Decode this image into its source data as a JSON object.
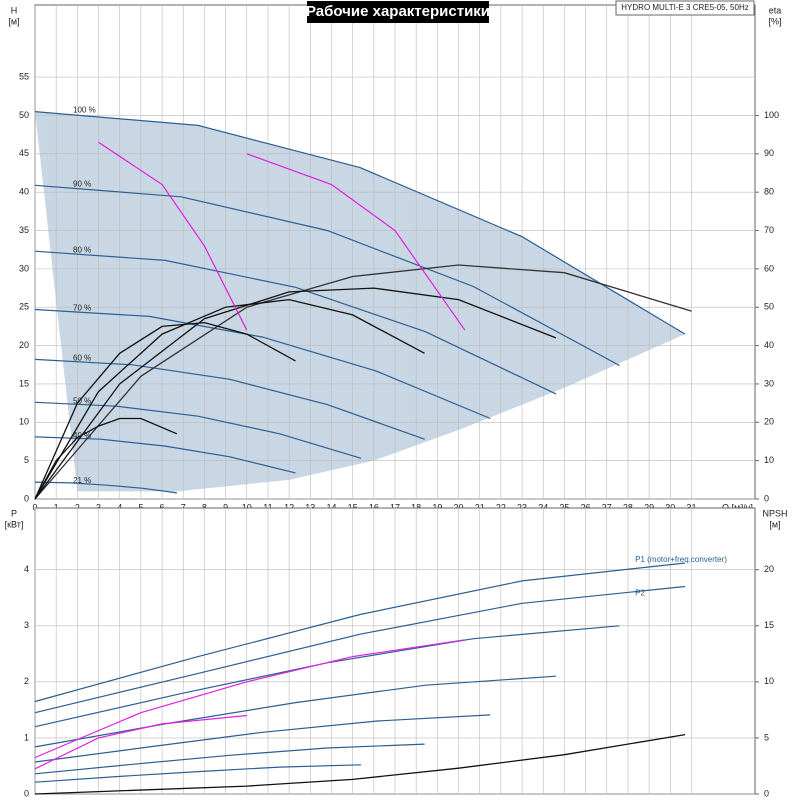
{
  "chart_data": [
    {
      "type": "line",
      "title": "Рабочие характеристики",
      "subtitle": "HYDRO MULTI-E 3 CRE5-05, 50Hz",
      "x_label": "Q [м³/ч]",
      "y_label": "H",
      "y_unit": "[м]",
      "y2_label": "eta",
      "y2_unit": "[%]",
      "xlim": [
        0,
        34
      ],
      "ylim": [
        0,
        64.4
      ],
      "y2lim": [
        0,
        128.8
      ],
      "xticks": [
        0,
        1,
        2,
        3,
        4,
        5,
        6,
        7,
        8,
        9,
        10,
        11,
        12,
        13,
        14,
        15,
        16,
        17,
        18,
        19,
        20,
        21,
        22,
        23,
        24,
        25,
        26,
        27,
        28,
        29,
        30,
        31
      ],
      "yticks": [
        0,
        5,
        10,
        15,
        20,
        25,
        30,
        35,
        40,
        45,
        50,
        55
      ],
      "y2ticks": [
        0,
        10,
        20,
        30,
        40,
        50,
        60,
        70,
        80,
        90,
        100
      ],
      "grid": true,
      "region": {
        "x": [
          2,
          6.7,
          12,
          16,
          20,
          25,
          30.7
        ],
        "lower": [
          1,
          1,
          2.5,
          5,
          9,
          14.5,
          21.5
        ]
      },
      "series": [
        {
          "name": "100 %",
          "color": "#2b5f93",
          "x": [
            0,
            7.7,
            15.35,
            23.0,
            30.7
          ],
          "values": [
            50.5,
            48.7,
            43.2,
            34.2,
            21.5
          ]
        },
        {
          "name": "90 %",
          "color": "#2b5f93",
          "x": [
            0,
            6.9,
            13.8,
            20.7,
            27.6
          ],
          "values": [
            40.9,
            39.4,
            35.0,
            27.7,
            17.4
          ]
        },
        {
          "name": "80 %",
          "color": "#2b5f93",
          "x": [
            0,
            6.15,
            12.3,
            18.45,
            24.6
          ],
          "values": [
            32.3,
            31.1,
            27.6,
            21.8,
            13.7
          ]
        },
        {
          "name": "70 %",
          "color": "#2b5f93",
          "x": [
            0,
            5.4,
            10.75,
            16.1,
            21.5
          ],
          "values": [
            24.7,
            23.8,
            21.1,
            16.7,
            10.5
          ]
        },
        {
          "name": "60 %",
          "color": "#2b5f93",
          "x": [
            0,
            4.6,
            9.2,
            13.8,
            18.4
          ],
          "values": [
            18.2,
            17.5,
            15.6,
            12.3,
            7.8
          ]
        },
        {
          "name": "50 %",
          "color": "#2b5f93",
          "x": [
            0,
            3.85,
            7.7,
            11.55,
            15.4
          ],
          "values": [
            12.6,
            12.1,
            10.8,
            8.5,
            5.3
          ]
        },
        {
          "name": "40 %",
          "color": "#2b5f93",
          "x": [
            0,
            3.1,
            6.15,
            9.2,
            12.3
          ],
          "values": [
            8.1,
            7.8,
            6.9,
            5.5,
            3.4
          ]
        },
        {
          "name": "21 %",
          "color": "#2b5f93",
          "x": [
            0,
            1.7,
            3.4,
            5.1,
            6.7
          ],
          "values": [
            2.2,
            2.1,
            1.8,
            1.4,
            0.8
          ]
        },
        {
          "color": "#333333",
          "axis": "y2",
          "x": [
            0,
            5,
            10,
            15,
            20,
            25,
            31
          ],
          "values": [
            0,
            32,
            50,
            58,
            61,
            59,
            49
          ]
        },
        {
          "color": "#111111",
          "axis": "y2",
          "x": [
            0,
            4,
            8,
            12,
            16,
            20,
            24.6
          ],
          "values": [
            0,
            30,
            47,
            54,
            55,
            52,
            42
          ]
        },
        {
          "color": "#111111",
          "axis": "y2",
          "x": [
            0,
            3,
            6,
            9,
            12,
            15,
            18.4
          ],
          "values": [
            0,
            28,
            43,
            50,
            52,
            48,
            38
          ]
        },
        {
          "color": "#111111",
          "axis": "y2",
          "x": [
            0,
            2,
            4,
            6,
            8,
            10,
            12.3
          ],
          "values": [
            0,
            25,
            38,
            45,
            46,
            43,
            36
          ]
        },
        {
          "color": "#111111",
          "axis": "y2",
          "x": [
            0,
            1,
            2,
            3,
            4,
            5,
            6.7
          ],
          "values": [
            0,
            10,
            16,
            19,
            21,
            21,
            17
          ]
        },
        {
          "color": "#e020e0",
          "x": [
            3,
            6,
            8,
            10
          ],
          "values": [
            46.5,
            41,
            33,
            22
          ]
        },
        {
          "color": "#e020e0",
          "x": [
            10,
            14,
            17,
            20.3
          ],
          "values": [
            45,
            41,
            35,
            22
          ]
        }
      ]
    },
    {
      "type": "line",
      "y_label": "P",
      "y_unit": "[кВт]",
      "y2_label": "NPSH",
      "y2_unit": "[м]",
      "xlim": [
        0,
        34
      ],
      "ylim": [
        0,
        5.1
      ],
      "y2lim": [
        0,
        25.5
      ],
      "yticks": [
        0,
        1,
        2,
        3,
        4
      ],
      "y2ticks": [
        0,
        5,
        10,
        15,
        20
      ],
      "grid": true,
      "series": [
        {
          "name": "P1 (motor+freq.converter)",
          "color": "#2b5f93",
          "x": [
            0,
            7.7,
            15.35,
            23.0,
            30.7
          ],
          "values": [
            1.65,
            2.45,
            3.2,
            3.8,
            4.12
          ]
        },
        {
          "name": "P2",
          "color": "#2b5f93",
          "x": [
            0,
            7.7,
            15.35,
            23.0,
            30.7
          ],
          "values": [
            1.45,
            2.15,
            2.85,
            3.4,
            3.7
          ]
        },
        {
          "color": "#2b5f93",
          "x": [
            0,
            6.9,
            13.8,
            20.7,
            27.6
          ],
          "values": [
            1.2,
            1.79,
            2.34,
            2.77,
            3.0
          ]
        },
        {
          "color": "#2b5f93",
          "x": [
            0,
            6.15,
            12.3,
            18.45,
            24.6
          ],
          "values": [
            0.84,
            1.25,
            1.63,
            1.94,
            2.1
          ]
        },
        {
          "color": "#2b5f93",
          "x": [
            0,
            5.4,
            10.75,
            16.1,
            21.5
          ],
          "values": [
            0.57,
            0.84,
            1.1,
            1.3,
            1.41
          ]
        },
        {
          "color": "#2b5f93",
          "x": [
            0,
            4.6,
            9.2,
            13.8,
            18.4
          ],
          "values": [
            0.36,
            0.53,
            0.69,
            0.82,
            0.89
          ]
        },
        {
          "color": "#2b5f93",
          "x": [
            0,
            3.85,
            7.7,
            11.55,
            15.4
          ],
          "values": [
            0.21,
            0.31,
            0.4,
            0.48,
            0.52
          ]
        },
        {
          "color": "#111111",
          "axis": "y2",
          "x": [
            0,
            10,
            15,
            20,
            25,
            30.7
          ],
          "values": [
            0,
            0.7,
            1.3,
            2.3,
            3.5,
            5.3
          ]
        },
        {
          "color": "#e020e0",
          "x": [
            0,
            5,
            10,
            15,
            20.3
          ],
          "values": [
            0.65,
            1.45,
            2.0,
            2.45,
            2.75
          ]
        },
        {
          "color": "#e020e0",
          "x": [
            0,
            3,
            6,
            10
          ],
          "values": [
            0.45,
            1.0,
            1.25,
            1.4
          ]
        }
      ]
    }
  ]
}
